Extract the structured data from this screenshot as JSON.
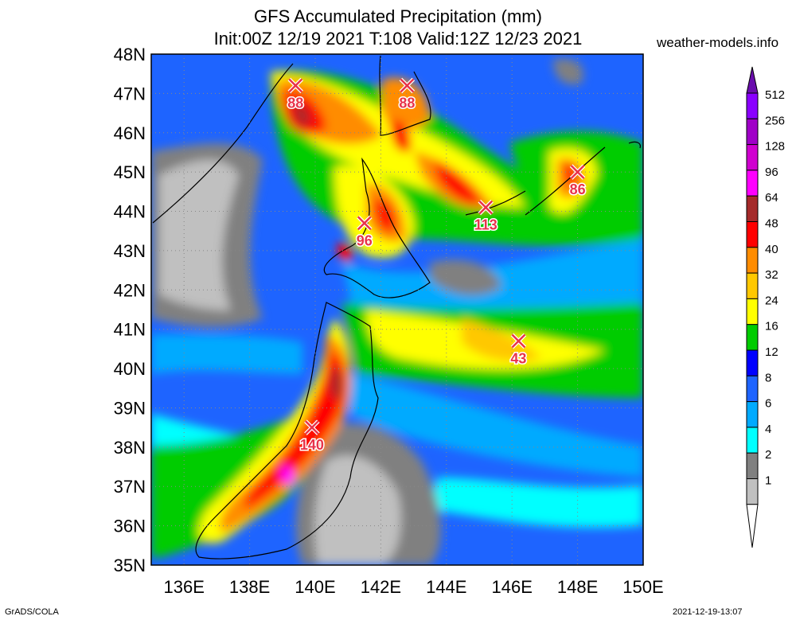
{
  "title": "GFS Accumulated Precipitation (mm)",
  "subtitle": "Init:00Z 12/19 2021 T:108 Valid:12Z 12/23 2021",
  "site": "weather-models.info",
  "footer_left": "GrADS/COLA",
  "footer_right": "2021-12-19-13:07",
  "map": {
    "lon_range": [
      135,
      150
    ],
    "lat_range": [
      35,
      48
    ],
    "lat_labels": [
      "48N",
      "47N",
      "46N",
      "45N",
      "44N",
      "43N",
      "42N",
      "41N",
      "40N",
      "39N",
      "38N",
      "37N",
      "36N",
      "35N"
    ],
    "lon_labels": [
      "136E",
      "138E",
      "140E",
      "142E",
      "144E",
      "146E",
      "148E",
      "150E"
    ],
    "gridlines": "dotted",
    "markers": [
      {
        "label": "88",
        "lon": 139.4,
        "lat": 47.2
      },
      {
        "label": "88",
        "lon": 142.8,
        "lat": 47.2
      },
      {
        "label": "86",
        "lon": 148.0,
        "lat": 45.0
      },
      {
        "label": "113",
        "lon": 145.2,
        "lat": 44.1
      },
      {
        "label": "96",
        "lon": 141.5,
        "lat": 43.7
      },
      {
        "label": "43",
        "lon": 146.2,
        "lat": 40.7
      },
      {
        "label": "140",
        "lon": 139.9,
        "lat": 38.5
      }
    ]
  },
  "legend": {
    "units": "mm",
    "levels": [
      "512",
      "256",
      "128",
      "96",
      "64",
      "48",
      "40",
      "32",
      "24",
      "16",
      "12",
      "8",
      "6",
      "4",
      "2",
      "1"
    ],
    "colors": [
      "#8a00ff",
      "#a000c8",
      "#d000d0",
      "#ff00ff",
      "#a52a2a",
      "#ff0000",
      "#ff8c00",
      "#ffc800",
      "#ffff00",
      "#00cc00",
      "#0000ff",
      "#1e64ff",
      "#00aaff",
      "#00ffff",
      "#808080",
      "#c0c0c0"
    ],
    "top_color": "#6a0dad",
    "bottom_color": "#ffffff"
  }
}
